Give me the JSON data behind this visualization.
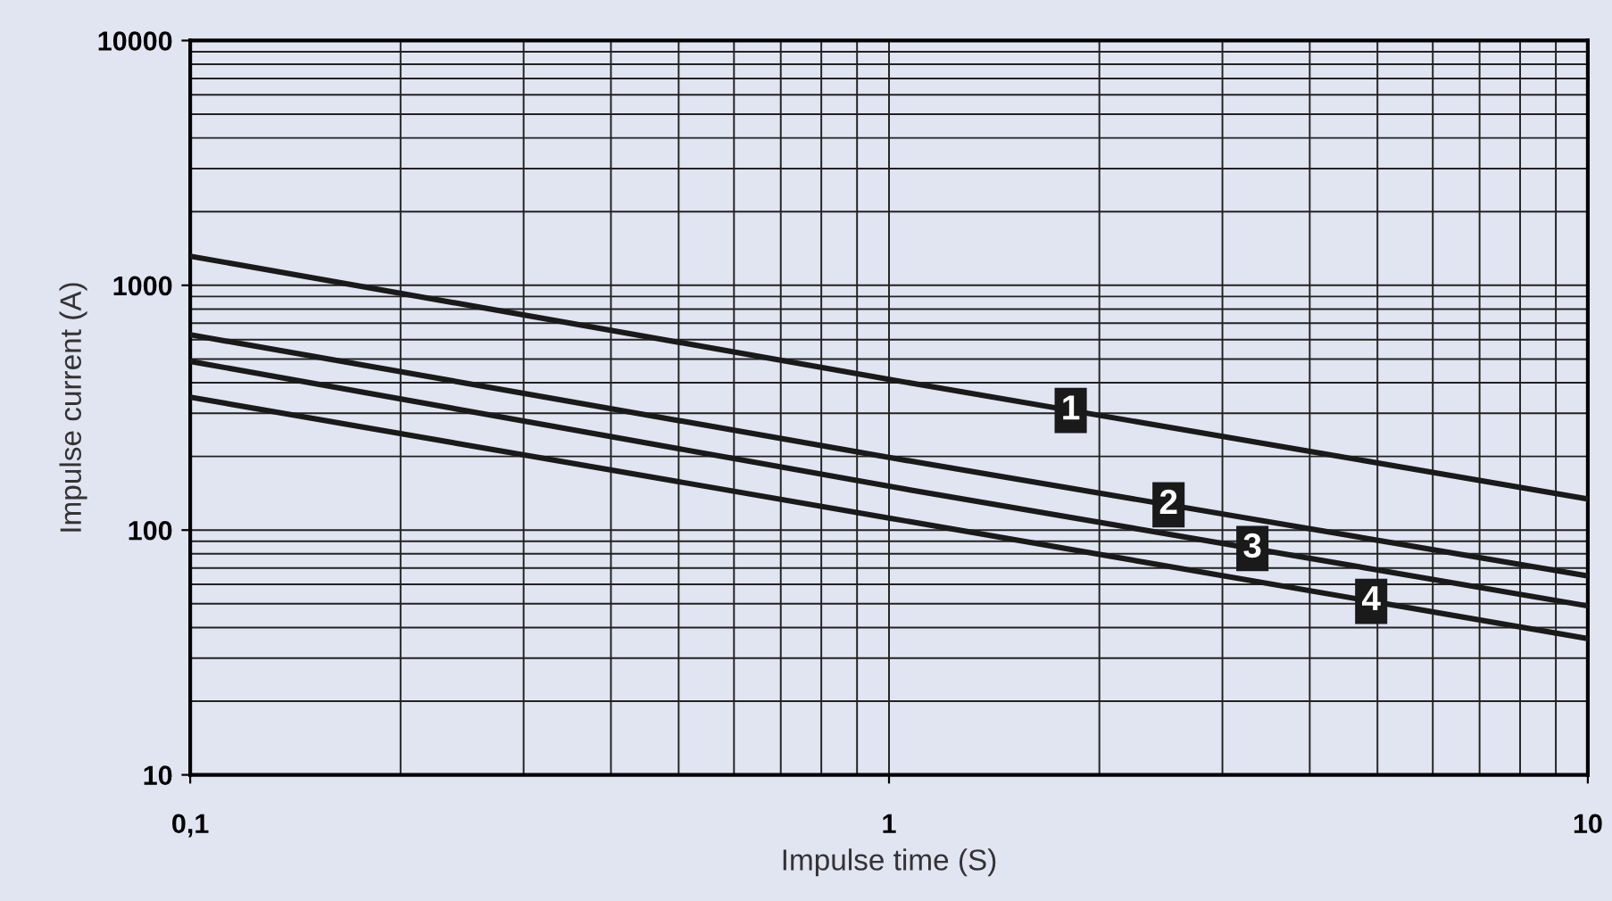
{
  "chart_data": {
    "type": "line",
    "xlabel": "Impulse time (S)",
    "ylabel": "Impulse current (A)",
    "x": [
      0.1,
      1,
      10
    ],
    "series": [
      {
        "name": "1",
        "color": "#1a1a1a",
        "values": [
          1315,
          413,
          134
        ]
      },
      {
        "name": "2",
        "color": "#1a1a1a",
        "values": [
          628,
          198,
          65
        ]
      },
      {
        "name": "3",
        "color": "#1a1a1a",
        "values": [
          489,
          151,
          49
        ]
      },
      {
        "name": "4",
        "color": "#1a1a1a",
        "values": [
          349,
          112,
          36
        ]
      }
    ],
    "log": "xy",
    "xlim": [
      0.1,
      10
    ],
    "ylim": [
      10,
      10000
    ],
    "xticks": [
      {
        "value": 0.1,
        "label": "0,1"
      },
      1,
      10
    ],
    "yticks": [
      10,
      100,
      1000,
      10000
    ],
    "grid": true,
    "marker": "none",
    "line_style": "solid",
    "legend": false
  }
}
